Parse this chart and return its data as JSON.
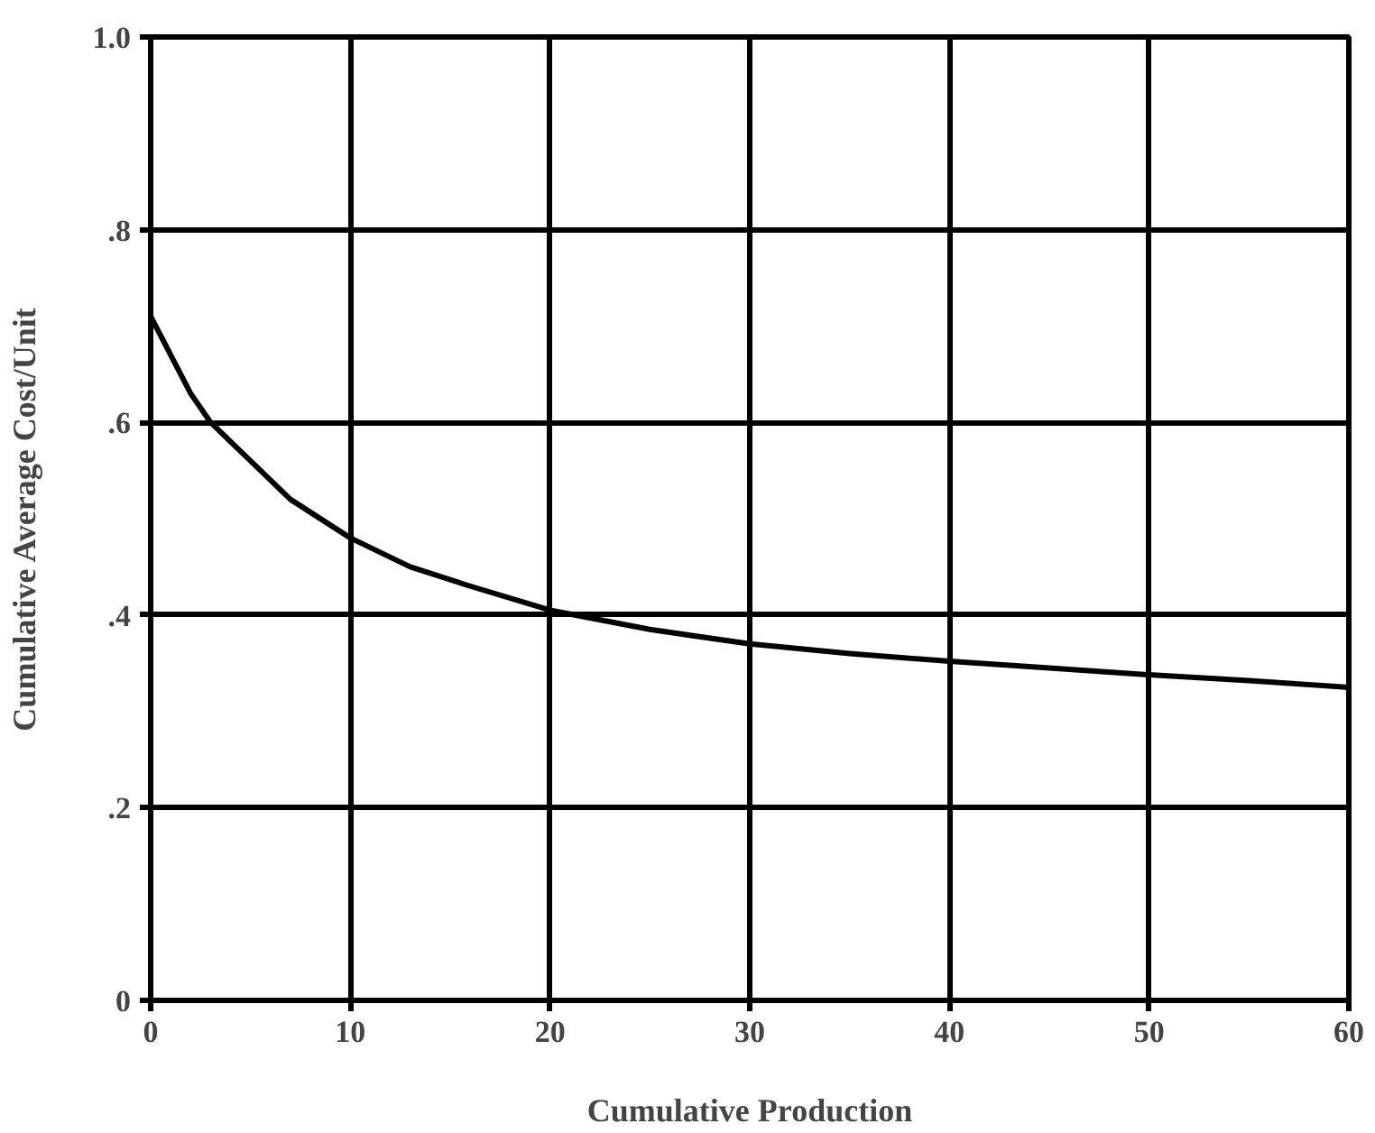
{
  "chart_data": {
    "type": "line",
    "xlabel": "Cumulative Production",
    "ylabel": "Cumulative Average Cost/Unit",
    "x": [
      0,
      1,
      2,
      3,
      5,
      7,
      10,
      13,
      16,
      20,
      25,
      30,
      35,
      40,
      45,
      50,
      55,
      60
    ],
    "series": [
      {
        "color": "#000000",
        "values": [
          0.71,
          0.67,
          0.63,
          0.6,
          0.56,
          0.52,
          0.48,
          0.45,
          0.43,
          0.405,
          0.385,
          0.37,
          0.36,
          0.352,
          0.345,
          0.338,
          0.332,
          0.325
        ]
      }
    ],
    "xlim": [
      0,
      60
    ],
    "ylim": [
      0,
      1
    ],
    "xticks": [
      0,
      10,
      20,
      30,
      40,
      50,
      60
    ],
    "yticks": [
      0,
      {
        "value": 0.2,
        "label": ".2"
      },
      {
        "value": 0.4,
        "label": ".4"
      },
      {
        "value": 0.6,
        "label": ".6"
      },
      {
        "value": 0.8,
        "label": ".8"
      },
      {
        "value": 1,
        "label": "1.0"
      }
    ],
    "grid": true,
    "marker": "none",
    "line_style": "solid"
  }
}
